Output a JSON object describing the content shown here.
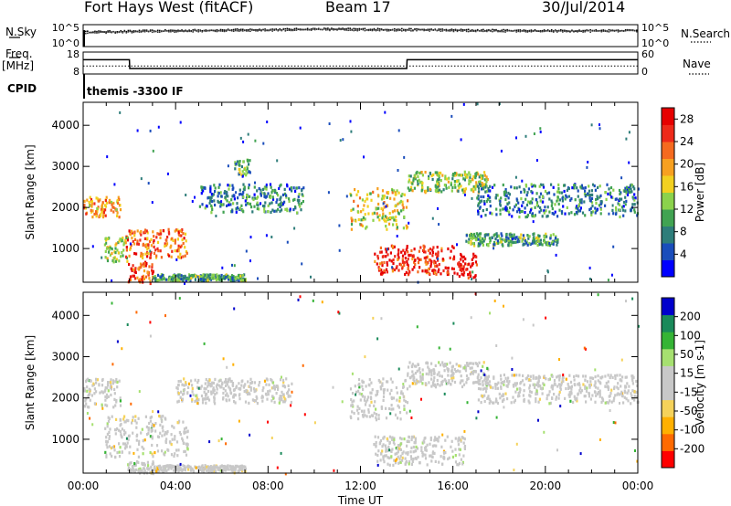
{
  "header": {
    "station": "Fort Hays West (fitACF)",
    "beam": "Beam 17",
    "date": "30/Jul/2014"
  },
  "side_labels": {
    "nsky": "N.Sky",
    "freq": "Freq.",
    "freq_unit": "[MHz]",
    "cpid": "CPID",
    "nsearch": "N.Search",
    "nave": "Nave",
    "noise_ticks": [
      "10^5",
      "10^0"
    ],
    "freq_ticks": [
      "18",
      "8"
    ],
    "nave_ticks": [
      "60",
      "0"
    ]
  },
  "cpid_text": "themis -3300 IF",
  "colors": {
    "power_scale": [
      "#0000ff",
      "#1a4dbb",
      "#2e7d7a",
      "#41a352",
      "#8bd24c",
      "#f2d020",
      "#f7a020",
      "#f56a1f",
      "#ee2a1a",
      "#e60000"
    ],
    "velocity_scale": [
      "#ff0000",
      "#ff6a00",
      "#ffb000",
      "#f5d25a",
      "#c8c8c8",
      "#c8c8c8",
      "#a6e070",
      "#35b435",
      "#1a8a5a",
      "#0000cc"
    ]
  },
  "chart_data": [
    {
      "type": "line",
      "title": "N.Sky / N.Search",
      "ylim": [
        "10^0",
        "10^5"
      ],
      "x": [
        "00:00",
        "02:00",
        "04:00",
        "08:00",
        "12:00",
        "16:00",
        "20:00",
        "24:00"
      ],
      "series": [
        {
          "name": "N.Sky",
          "values": [
            3.5,
            3.8,
            4.0,
            4.2,
            4.1,
            3.9,
            3.8,
            3.9
          ]
        },
        {
          "name": "N.Search",
          "values": [
            3.3,
            3.6,
            3.8,
            4.0,
            3.9,
            3.7,
            3.6,
            3.7
          ]
        }
      ]
    },
    {
      "type": "line",
      "title": "Freq. / Nave",
      "x": [
        "00:00",
        "02:00",
        "02:01",
        "14:00",
        "14:01",
        "24:00"
      ],
      "series": [
        {
          "name": "Freq.",
          "unit": "MHz",
          "values": [
            14.5,
            14.5,
            10.5,
            10.5,
            14.5,
            14.5
          ]
        },
        {
          "name": "Nave",
          "values": [
            22,
            22,
            22,
            22,
            22,
            22
          ]
        }
      ]
    },
    {
      "type": "heatmap",
      "title": "Power",
      "xlabel": "Time UT",
      "ylabel": "Slant Range [km]",
      "xticks": [
        "00:00",
        "04:00",
        "08:00",
        "12:00",
        "16:00",
        "20:00",
        "00:00"
      ],
      "yticks": [
        1000,
        2000,
        3000,
        4000
      ],
      "ylim": [
        180,
        4560
      ],
      "colorbar": {
        "label": "Power [dB]",
        "ticks": [
          4,
          8,
          12,
          16,
          20,
          24,
          28
        ],
        "range": [
          0,
          30
        ]
      },
      "regions": [
        {
          "t": [
            0.0,
            1.6
          ],
          "r": [
            1800,
            2300
          ],
          "value": 20
        },
        {
          "t": [
            0.9,
            1.9
          ],
          "r": [
            700,
            1300
          ],
          "value": 14
        },
        {
          "t": [
            1.8,
            4.5
          ],
          "r": [
            800,
            1500
          ],
          "value": 22
        },
        {
          "t": [
            1.9,
            3.0
          ],
          "r": [
            180,
            700
          ],
          "value": 24
        },
        {
          "t": [
            3.0,
            7.0
          ],
          "r": [
            250,
            400
          ],
          "value": 10
        },
        {
          "t": [
            5.0,
            9.5
          ],
          "r": [
            1900,
            2600
          ],
          "value": 8
        },
        {
          "t": [
            6.5,
            7.2
          ],
          "r": [
            2800,
            3200
          ],
          "value": 10
        },
        {
          "t": [
            11.5,
            14.0
          ],
          "r": [
            1500,
            2500
          ],
          "value": 16
        },
        {
          "t": [
            12.5,
            16.0
          ],
          "r": [
            400,
            1100
          ],
          "value": 26
        },
        {
          "t": [
            14.0,
            17.5
          ],
          "r": [
            2400,
            2900
          ],
          "value": 14
        },
        {
          "t": [
            16.0,
            17.0
          ],
          "r": [
            300,
            900
          ],
          "value": 28
        },
        {
          "t": [
            17.0,
            24.0
          ],
          "r": [
            1800,
            2600
          ],
          "value": 8
        },
        {
          "t": [
            16.5,
            20.5
          ],
          "r": [
            1100,
            1400
          ],
          "value": 10
        }
      ]
    },
    {
      "type": "heatmap",
      "title": "Velocity",
      "xlabel": "Time UT",
      "ylabel": "Slant Range [km]",
      "xticks": [
        "00:00",
        "04:00",
        "08:00",
        "12:00",
        "16:00",
        "20:00",
        "00:00"
      ],
      "yticks": [
        1000,
        2000,
        3000,
        4000
      ],
      "ylim": [
        180,
        4560
      ],
      "colorbar": {
        "label": "Velocity [m s-1]",
        "ticks": [
          200,
          100,
          50,
          15,
          -15,
          -50,
          -100,
          -200
        ],
        "range": [
          -250,
          250
        ]
      },
      "regions": [
        {
          "t": [
            0.0,
            1.6
          ],
          "r": [
            1800,
            2500
          ],
          "value": 0
        },
        {
          "t": [
            0.9,
            4.5
          ],
          "r": [
            600,
            1600
          ],
          "value": 0
        },
        {
          "t": [
            1.9,
            3.0
          ],
          "r": [
            200,
            500
          ],
          "value": 30
        },
        {
          "t": [
            3.0,
            7.0
          ],
          "r": [
            250,
            400
          ],
          "value": -40
        },
        {
          "t": [
            4.0,
            9.0
          ],
          "r": [
            1900,
            2500
          ],
          "value": -30
        },
        {
          "t": [
            11.5,
            14.0
          ],
          "r": [
            1500,
            2500
          ],
          "value": 0
        },
        {
          "t": [
            12.5,
            16.5
          ],
          "r": [
            400,
            1100
          ],
          "value": 0
        },
        {
          "t": [
            14.0,
            17.5
          ],
          "r": [
            2300,
            2900
          ],
          "value": 0
        },
        {
          "t": [
            17.0,
            24.0
          ],
          "r": [
            1900,
            2600
          ],
          "value": 0
        }
      ]
    }
  ]
}
